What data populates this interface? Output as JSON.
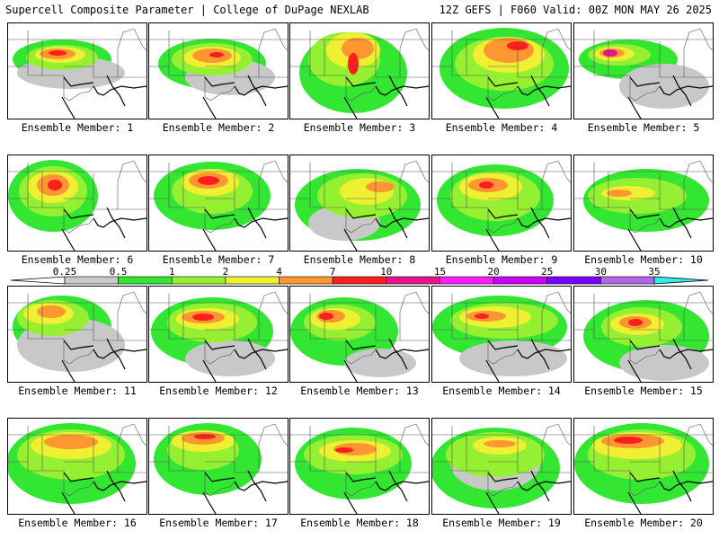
{
  "header": {
    "title_left": "Supercell Composite Parameter | College of DuPage NEXLAB",
    "title_right": "12Z GEFS | F060 Valid: 00Z MON MAY 26 2025"
  },
  "panels": [
    {
      "label": "Ensemble Member: 1"
    },
    {
      "label": "Ensemble Member: 2"
    },
    {
      "label": "Ensemble Member: 3"
    },
    {
      "label": "Ensemble Member: 4"
    },
    {
      "label": "Ensemble Member: 5"
    },
    {
      "label": "Ensemble Member: 6"
    },
    {
      "label": "Ensemble Member: 7"
    },
    {
      "label": "Ensemble Member: 8"
    },
    {
      "label": "Ensemble Member: 9"
    },
    {
      "label": "Ensemble Member: 10"
    },
    {
      "label": "Ensemble Member: 11"
    },
    {
      "label": "Ensemble Member: 12"
    },
    {
      "label": "Ensemble Member: 13"
    },
    {
      "label": "Ensemble Member: 14"
    },
    {
      "label": "Ensemble Member: 15"
    },
    {
      "label": "Ensemble Member: 16"
    },
    {
      "label": "Ensemble Member: 17"
    },
    {
      "label": "Ensemble Member: 18"
    },
    {
      "label": "Ensemble Member: 19"
    },
    {
      "label": "Ensemble Member: 20"
    }
  ],
  "colorbar": {
    "ticks": [
      "0.25",
      "0.5",
      "1",
      "2",
      "4",
      "7",
      "10",
      "15",
      "20",
      "25",
      "30",
      "35"
    ],
    "colors": [
      "#c8c8c8",
      "#32e632",
      "#96f032",
      "#f0f032",
      "#ff9632",
      "#ff1e1e",
      "#e6148c",
      "#ff1eff",
      "#c800ff",
      "#7800ff",
      "#b464e6",
      "#32f0f0"
    ]
  },
  "map_colors": {
    "gray": "#c8c8c8",
    "green": "#32e632",
    "lime": "#96f032",
    "yellow": "#f0f032",
    "orange": "#ff9632",
    "red": "#ff1e1e",
    "magenta": "#e6148c"
  }
}
